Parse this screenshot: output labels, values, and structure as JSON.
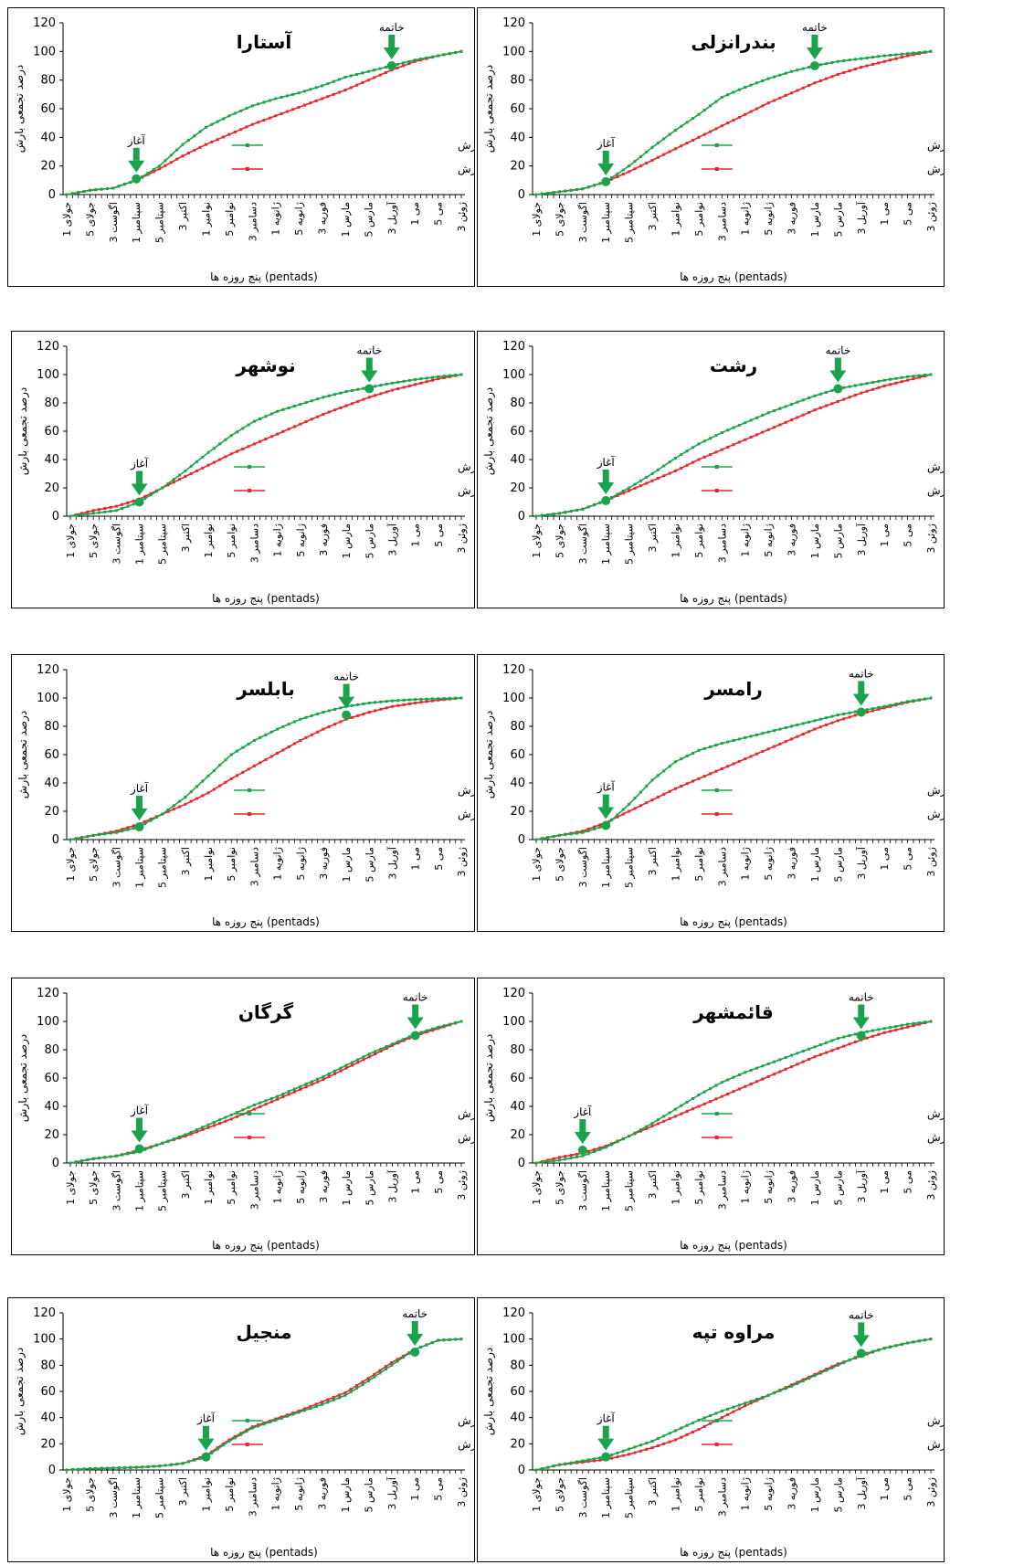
{
  "chart_data": [
    {
      "type": "line",
      "title": "آستارا",
      "xlabel": "پنج روزه ها (pentads)",
      "ylabel": "درصد تجمعی بارش",
      "ylim": [
        0,
        120
      ],
      "yticks": [
        0,
        20,
        40,
        60,
        80,
        100,
        120
      ],
      "categories": [
        "جولای 1",
        "جولای 5",
        "اگوست 3",
        "سپتامبر 1",
        "سپتامبر 5",
        "اکتبر 3",
        "نوامبر 1",
        "نوامبر 5",
        "دسامبر 3",
        "ژانویه 1",
        "ژانویه 5",
        "فوریه 3",
        "مارس 1",
        "مارس 5",
        "آوریل 3",
        "می 1",
        "می 5",
        "ژوئن 3"
      ],
      "legend_position": "right",
      "series": [
        {
          "name": "درصد تجمعی مقدار بارش",
          "color": "#1aa34a",
          "values": [
            0,
            3,
            4.5,
            10,
            20,
            35,
            47,
            55,
            62,
            67,
            71,
            76,
            82,
            86,
            90,
            94,
            97,
            100
          ]
        },
        {
          "name": "درصد تجمعی تعداد روزهای بارش",
          "color": "#e8262b",
          "values": [
            0,
            3,
            4.5,
            10,
            18,
            27,
            35,
            42,
            49,
            55,
            61,
            67,
            73,
            80,
            87,
            93,
            97,
            100
          ]
        }
      ],
      "annotations": [
        {
          "label": "آغاز",
          "category": "سپتامبر 1",
          "value": 11
        },
        {
          "label": "خاتمه",
          "category": "آوریل 3",
          "value": 90
        }
      ]
    },
    {
      "type": "line",
      "title": "بندرانزلی",
      "xlabel": "پنج روزه ها (pentads)",
      "ylabel": "درصد تجمعی بارش",
      "ylim": [
        0,
        120
      ],
      "yticks": [
        0,
        20,
        40,
        60,
        80,
        100,
        120
      ],
      "categories": [
        "جولای 1",
        "جولای 5",
        "اگوست 3",
        "سپتامبر 1",
        "سپتامبر 5",
        "اکتبر 3",
        "نوامبر 1",
        "نوامبر 5",
        "دسامبر 3",
        "ژانویه 1",
        "ژانویه 5",
        "فوریه 3",
        "مارس 1",
        "مارس 5",
        "آوریل 3",
        "می 1",
        "می 5",
        "ژوئن 3"
      ],
      "legend_position": "right",
      "series": [
        {
          "name": "درصد تجمعی مقدار بارش",
          "color": "#1aa34a",
          "values": [
            0,
            2,
            4,
            9,
            20,
            33,
            45,
            56,
            68,
            75,
            81,
            86,
            90,
            93,
            95,
            97,
            98.5,
            100
          ]
        },
        {
          "name": "درصد تجمعی تعداد روزهای بارش",
          "color": "#e8262b",
          "values": [
            0,
            2,
            4,
            9,
            16,
            24,
            32,
            40,
            48,
            56,
            64,
            71,
            78,
            84,
            89,
            93,
            97,
            100
          ]
        }
      ],
      "annotations": [
        {
          "label": "آغاز",
          "category": "سپتامبر 1",
          "value": 9
        },
        {
          "label": "خاتمه",
          "category": "مارس 1",
          "value": 90
        }
      ]
    },
    {
      "type": "line",
      "title": "نوشهر",
      "xlabel": "پنج روزه ها (pentads)",
      "ylabel": "درصد تجمعی بارش",
      "ylim": [
        0,
        120
      ],
      "yticks": [
        0,
        20,
        40,
        60,
        80,
        100,
        120
      ],
      "categories": [
        "جولای 1",
        "جولای 5",
        "اگوست 3",
        "سپتامبر 1",
        "سپتامبر 5",
        "اکتبر 3",
        "نوامبر 1",
        "نوامبر 5",
        "دسامبر 3",
        "ژانویه 1",
        "ژانویه 5",
        "فوریه 3",
        "مارس 1",
        "مارس 5",
        "آوریل 3",
        "می 1",
        "می 5",
        "ژوئن 3"
      ],
      "legend_position": "right",
      "series": [
        {
          "name": "درصد تجمعی مقدار بارش",
          "color": "#1aa34a",
          "values": [
            0,
            2,
            4,
            10,
            20,
            32,
            45,
            57,
            67,
            74,
            79,
            84,
            88,
            91,
            94,
            96.5,
            98.5,
            100
          ]
        },
        {
          "name": "درصد تجمعی تعداد روزهای بارش",
          "color": "#e8262b",
          "values": [
            0,
            4,
            7,
            12,
            20,
            28,
            36,
            44,
            51,
            58,
            65,
            72,
            78,
            84,
            89,
            93,
            97,
            100
          ]
        }
      ],
      "annotations": [
        {
          "label": "آغاز",
          "category": "سپتامبر 1",
          "value": 10
        },
        {
          "label": "خاتمه",
          "category": "مارس 5",
          "value": 90
        }
      ]
    },
    {
      "type": "line",
      "title": "رشت",
      "xlabel": "پنج روزه ها (pentads)",
      "ylabel": "درصد تجمعی بارش",
      "ylim": [
        0,
        120
      ],
      "yticks": [
        0,
        20,
        40,
        60,
        80,
        100,
        120
      ],
      "categories": [
        "جولای 1",
        "جولای 5",
        "اگوست 3",
        "سپتامبر 1",
        "سپتامبر 5",
        "اکتبر 3",
        "نوامبر 1",
        "نوامبر 5",
        "دسامبر 3",
        "ژانویه 1",
        "ژانویه 5",
        "فوریه 3",
        "مارس 1",
        "مارس 5",
        "آوریل 3",
        "می 1",
        "می 5",
        "ژوئن 3"
      ],
      "legend_position": "right",
      "series": [
        {
          "name": "درصد تجمعی مقدار بارش",
          "color": "#1aa34a",
          "values": [
            0,
            2,
            5,
            11,
            20,
            30,
            41,
            51,
            59,
            66,
            73,
            79,
            85,
            90,
            93,
            96,
            98.5,
            100
          ]
        },
        {
          "name": "درصد تجمعی تعداد روزهای بارش",
          "color": "#e8262b",
          "values": [
            0,
            2,
            5,
            11,
            18,
            25,
            32,
            40,
            47,
            54,
            61,
            68,
            75,
            81,
            87,
            92,
            96,
            100
          ]
        }
      ],
      "annotations": [
        {
          "label": "آغاز",
          "category": "سپتامبر 1",
          "value": 11
        },
        {
          "label": "خاتمه",
          "category": "مارس 5",
          "value": 90
        }
      ]
    },
    {
      "type": "line",
      "title": "بابلسر",
      "xlabel": "پنج روزه ها (pentads)",
      "ylabel": "درصد تجمعی بارش",
      "ylim": [
        0,
        120
      ],
      "yticks": [
        0,
        20,
        40,
        60,
        80,
        100,
        120
      ],
      "categories": [
        "جولای 1",
        "جولای 5",
        "اگوست 3",
        "سپتامبر 1",
        "سپتامبر 5",
        "اکتبر 3",
        "نوامبر 1",
        "نوامبر 5",
        "دسامبر 3",
        "ژانویه 1",
        "ژانویه 5",
        "فوریه 3",
        "مارس 1",
        "مارس 5",
        "آوریل 3",
        "می 1",
        "می 5",
        "ژوئن 3"
      ],
      "legend_position": "right",
      "series": [
        {
          "name": "درصد تجمعی مقدار بارش",
          "color": "#1aa34a",
          "values": [
            0,
            3,
            5,
            9,
            18,
            30,
            45,
            60,
            70,
            78,
            85,
            90,
            94,
            96.5,
            98,
            99,
            99.5,
            100
          ]
        },
        {
          "name": "درصد تجمعی تعداد روزهای بارش",
          "color": "#e8262b",
          "values": [
            0,
            3,
            6,
            11,
            18,
            25,
            33,
            43,
            52,
            61,
            70,
            78,
            85,
            90,
            94,
            96.5,
            98.5,
            100
          ]
        }
      ],
      "annotations": [
        {
          "label": "آغاز",
          "category": "سپتامبر 1",
          "value": 9
        },
        {
          "label": "خاتمه",
          "category": "مارس 1",
          "value": 88
        }
      ]
    },
    {
      "type": "line",
      "title": "رامسر",
      "xlabel": "پنج روزه ها (pentads)",
      "ylabel": "درصد تجمعی بارش",
      "ylim": [
        0,
        120
      ],
      "yticks": [
        0,
        20,
        40,
        60,
        80,
        100,
        120
      ],
      "categories": [
        "جولای 1",
        "جولای 5",
        "اگوست 3",
        "سپتامبر 1",
        "سپتامبر 5",
        "اکتبر 3",
        "نوامبر 1",
        "نوامبر 5",
        "دسامبر 3",
        "ژانویه 1",
        "ژانویه 5",
        "فوریه 3",
        "مارس 1",
        "مارس 5",
        "آوریل 3",
        "می 1",
        "می 5",
        "ژوئن 3"
      ],
      "legend_position": "right",
      "series": [
        {
          "name": "درصد تجمعی مقدار بارش",
          "color": "#1aa34a",
          "values": [
            0,
            3,
            5,
            10,
            25,
            42,
            55,
            63,
            68,
            72,
            76,
            80,
            84,
            88,
            91,
            94,
            97.5,
            100
          ]
        },
        {
          "name": "درصد تجمعی تعداد روزهای بارش",
          "color": "#e8262b",
          "values": [
            0,
            3,
            6,
            12,
            20,
            28,
            36,
            43,
            50,
            57,
            64,
            71,
            78,
            84,
            89,
            93,
            97,
            100
          ]
        }
      ],
      "annotations": [
        {
          "label": "آغاز",
          "category": "سپتامبر 1",
          "value": 10
        },
        {
          "label": "خاتمه",
          "category": "آوریل 3",
          "value": 90
        }
      ]
    },
    {
      "type": "line",
      "title": "گرگان",
      "xlabel": "پنج روزه ها (pentads)",
      "ylabel": "درصد تجمعی بارش",
      "ylim": [
        0,
        120
      ],
      "yticks": [
        0,
        20,
        40,
        60,
        80,
        100,
        120
      ],
      "categories": [
        "جولای 1",
        "جولای 5",
        "اگوست 3",
        "سپتامبر 1",
        "سپتامبر 5",
        "اکتبر 3",
        "نوامبر 1",
        "نوامبر 5",
        "دسامبر 3",
        "ژانویه 1",
        "ژانویه 5",
        "فوریه 3",
        "مارس 1",
        "مارس 5",
        "آوریل 3",
        "می 1",
        "می 5",
        "ژوئن 3"
      ],
      "legend_position": "right",
      "series": [
        {
          "name": "درصد تجمعی مقدار بارش",
          "color": "#1aa34a",
          "values": [
            0,
            3,
            5,
            8,
            14,
            20,
            27,
            34,
            41,
            47,
            54,
            61,
            69,
            77,
            84,
            91,
            96,
            100
          ]
        },
        {
          "name": "درصد تجمعی تعداد روزهای بارش",
          "color": "#e8262b",
          "values": [
            0,
            3,
            5,
            9,
            14,
            19,
            25,
            31,
            38,
            45,
            52,
            59,
            67,
            75,
            83,
            90,
            95,
            100
          ]
        }
      ],
      "annotations": [
        {
          "label": "آغاز",
          "category": "سپتامبر 1",
          "value": 10
        },
        {
          "label": "خاتمه",
          "category": "می 1",
          "value": 90
        }
      ]
    },
    {
      "type": "line",
      "title": "قائمشهر",
      "xlabel": "پنج روزه ها (pentads)",
      "ylabel": "درصد تجمعی بارش",
      "ylim": [
        0,
        120
      ],
      "yticks": [
        0,
        20,
        40,
        60,
        80,
        100,
        120
      ],
      "categories": [
        "جولای 1",
        "جولای 5",
        "اگوست 3",
        "سپتامبر 1",
        "سپتامبر 5",
        "اکتبر 3",
        "نوامبر 1",
        "نوامبر 5",
        "دسامبر 3",
        "ژانویه 1",
        "ژانویه 5",
        "فوریه 3",
        "مارس 1",
        "مارس 5",
        "آوریل 3",
        "می 1",
        "می 5",
        "ژوئن 3"
      ],
      "legend_position": "right",
      "series": [
        {
          "name": "درصد تجمعی مقدار بارش",
          "color": "#1aa34a",
          "values": [
            0,
            2,
            5,
            11,
            19,
            28,
            38,
            48,
            57,
            64,
            70,
            76,
            82,
            88,
            92,
            95,
            98,
            100
          ]
        },
        {
          "name": "درصد تجمعی تعداد روزهای بارش",
          "color": "#e8262b",
          "values": [
            0,
            4,
            7,
            12,
            19,
            26,
            33,
            40,
            47,
            54,
            61,
            68,
            75,
            81,
            87,
            92,
            96,
            100
          ]
        }
      ],
      "annotations": [
        {
          "label": "آغاز",
          "category": "اگوست 3",
          "value": 9
        },
        {
          "label": "خاتمه",
          "category": "آوریل 3",
          "value": 90
        }
      ]
    },
    {
      "type": "line",
      "title": "منجیل",
      "xlabel": "پنج روزه ها (pentads)",
      "ylabel": "درصد تجمعی بارش",
      "ylim": [
        0,
        120
      ],
      "yticks": [
        0,
        20,
        40,
        60,
        80,
        100,
        120
      ],
      "categories": [
        "جولای 1",
        "جولای 5",
        "اگوست 3",
        "سپتامبر 1",
        "سپتامبر 5",
        "اکتبر 3",
        "نوامبر 1",
        "نوامبر 5",
        "دسامبر 3",
        "ژانویه 1",
        "ژانویه 5",
        "فوریه 3",
        "مارس 1",
        "مارس 5",
        "آوریل 3",
        "می 1",
        "می 5",
        "ژوئن 3"
      ],
      "legend_position": "right",
      "series": [
        {
          "name": "درصد تجمعی مقدار بارش",
          "color": "#1aa34a",
          "values": [
            0,
            1,
            1.5,
            2,
            3,
            5,
            10,
            22,
            32,
            38,
            44,
            50,
            57,
            68,
            80,
            92,
            99,
            100
          ]
        },
        {
          "name": "درصد تجمعی تعداد روزهای بارش",
          "color": "#e8262b",
          "values": [
            0,
            1,
            1.5,
            2,
            3,
            5,
            11,
            23,
            33,
            39,
            45,
            52,
            59,
            70,
            82,
            92,
            99,
            100
          ]
        }
      ],
      "annotations": [
        {
          "label": "آغاز",
          "category": "نوامبر 1",
          "value": 10
        },
        {
          "label": "خاتمه",
          "category": "می 1",
          "value": 90
        }
      ]
    },
    {
      "type": "line",
      "title": "مراوه تپه",
      "xlabel": "پنج روزه ها (pentads)",
      "ylabel": "درصد تجمعی بارش",
      "ylim": [
        0,
        120
      ],
      "yticks": [
        0,
        20,
        40,
        60,
        80,
        100,
        120
      ],
      "categories": [
        "جولای 1",
        "جولای 5",
        "اگوست 3",
        "سپتامبر 1",
        "سپتامبر 5",
        "اکتبر 3",
        "نوامبر 1",
        "نوامبر 5",
        "دسامبر 3",
        "ژانویه 1",
        "ژانویه 5",
        "فوریه 3",
        "مارس 1",
        "مارس 5",
        "آوریل 3",
        "می 1",
        "می 5",
        "ژوئن 3"
      ],
      "legend_position": "right",
      "series": [
        {
          "name": "درصد تجمعی مقدار بارش",
          "color": "#1aa34a",
          "values": [
            0,
            4,
            7,
            10,
            16,
            22,
            30,
            38,
            45,
            51,
            57,
            64,
            72,
            80,
            88,
            93,
            97,
            100
          ]
        },
        {
          "name": "درصد تجمعی تعداد روزهای بارش",
          "color": "#e8262b",
          "values": [
            0,
            4,
            6,
            8,
            12,
            17,
            23,
            31,
            40,
            49,
            57,
            65,
            73,
            81,
            87,
            93,
            97,
            100
          ]
        }
      ],
      "annotations": [
        {
          "label": "آغاز",
          "category": "سپتامبر 1",
          "value": 10
        },
        {
          "label": "خاتمه",
          "category": "آوریل 3",
          "value": 89
        }
      ]
    }
  ]
}
